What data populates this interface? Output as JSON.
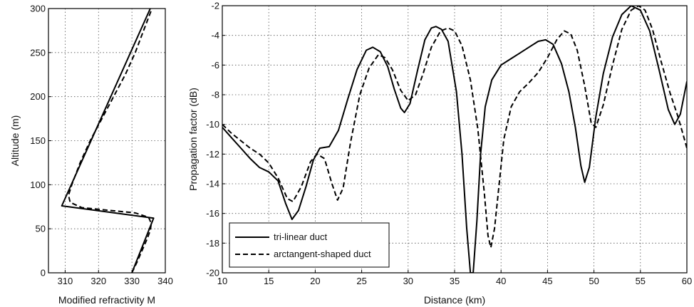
{
  "chart_data": [
    {
      "type": "line",
      "xlabel": "Modified refractivity M",
      "ylabel": "Altitude (m)",
      "xlim": [
        305,
        340
      ],
      "ylim": [
        0,
        300
      ],
      "xticks": [
        310,
        320,
        330,
        340
      ],
      "yticks": [
        0,
        50,
        100,
        150,
        200,
        250,
        300
      ],
      "grid": true,
      "series": [
        {
          "style": "solid",
          "points": [
            [
              330,
              0
            ],
            [
              336.5,
              62
            ],
            [
              309,
              76
            ],
            [
              335.5,
              300
            ]
          ]
        },
        {
          "style": "dashed",
          "points": [
            [
              330,
              0
            ],
            [
              331.5,
              12
            ],
            [
              333,
              25
            ],
            [
              334.5,
              38
            ],
            [
              335.5,
              48
            ],
            [
              335.8,
              56
            ],
            [
              335,
              63
            ],
            [
              331,
              68
            ],
            [
              323,
              71
            ],
            [
              315,
              74
            ],
            [
              311.5,
              80
            ],
            [
              311,
              88
            ],
            [
              312,
              100
            ],
            [
              314.5,
              125
            ],
            [
              317.5,
              150
            ],
            [
              321,
              175
            ],
            [
              324.5,
              200
            ],
            [
              328,
              225
            ],
            [
              331,
              250
            ],
            [
              333.5,
              275
            ],
            [
              336,
              300
            ]
          ]
        }
      ]
    },
    {
      "type": "line",
      "xlabel": "Distance (km)",
      "ylabel": "Propagation factor (dB)",
      "xlim": [
        10,
        60
      ],
      "ylim": [
        -20,
        -2
      ],
      "xticks": [
        10,
        15,
        20,
        25,
        30,
        35,
        40,
        45,
        50,
        55,
        60
      ],
      "yticks": [
        -20,
        -18,
        -16,
        -14,
        -12,
        -10,
        -8,
        -6,
        -4,
        -2
      ],
      "grid": true,
      "legend": {
        "position": "bottom-left",
        "entries": [
          {
            "label": "tri-linear duct",
            "style": "solid"
          },
          {
            "label": "arctangent-shaped duct",
            "style": "dashed"
          }
        ]
      },
      "series": [
        {
          "name": "tri-linear duct",
          "style": "solid",
          "points": [
            [
              10,
              -10.2
            ],
            [
              11,
              -10.9
            ],
            [
              12,
              -11.6
            ],
            [
              13,
              -12.3
            ],
            [
              14,
              -12.9
            ],
            [
              15,
              -13.2
            ],
            [
              16,
              -13.8
            ],
            [
              16.8,
              -15.3
            ],
            [
              17.5,
              -16.4
            ],
            [
              18.2,
              -15.8
            ],
            [
              19,
              -14.2
            ],
            [
              19.8,
              -12.4
            ],
            [
              20.5,
              -11.6
            ],
            [
              21.5,
              -11.5
            ],
            [
              22.5,
              -10.4
            ],
            [
              23.5,
              -8.3
            ],
            [
              24.5,
              -6.3
            ],
            [
              25.5,
              -5.0
            ],
            [
              26.2,
              -4.8
            ],
            [
              27,
              -5.1
            ],
            [
              27.8,
              -6.1
            ],
            [
              28.5,
              -7.6
            ],
            [
              29.2,
              -8.9
            ],
            [
              29.6,
              -9.2
            ],
            [
              30.2,
              -8.6
            ],
            [
              31,
              -6.4
            ],
            [
              31.8,
              -4.3
            ],
            [
              32.5,
              -3.5
            ],
            [
              33,
              -3.4
            ],
            [
              33.6,
              -3.6
            ],
            [
              34.3,
              -4.4
            ],
            [
              35.2,
              -7.8
            ],
            [
              35.8,
              -12.0
            ],
            [
              36.3,
              -17.0
            ],
            [
              36.7,
              -20.0
            ],
            [
              37.0,
              -20.0
            ],
            [
              37.4,
              -16.5
            ],
            [
              37.8,
              -12.0
            ],
            [
              38.3,
              -8.8
            ],
            [
              39,
              -7.0
            ],
            [
              40,
              -6.0
            ],
            [
              41,
              -5.6
            ],
            [
              42,
              -5.2
            ],
            [
              43,
              -4.8
            ],
            [
              44,
              -4.4
            ],
            [
              44.8,
              -4.3
            ],
            [
              45.6,
              -4.6
            ],
            [
              46.5,
              -5.9
            ],
            [
              47.3,
              -7.8
            ],
            [
              48,
              -10.2
            ],
            [
              48.6,
              -12.8
            ],
            [
              49,
              -13.9
            ],
            [
              49.5,
              -12.9
            ],
            [
              50.2,
              -9.5
            ],
            [
              51,
              -6.6
            ],
            [
              52,
              -4.1
            ],
            [
              53,
              -2.6
            ],
            [
              54,
              -2.0
            ],
            [
              55,
              -2.3
            ],
            [
              56,
              -3.7
            ],
            [
              57,
              -6.3
            ],
            [
              58,
              -9.0
            ],
            [
              58.7,
              -10.0
            ],
            [
              59.3,
              -9.3
            ],
            [
              60,
              -7.1
            ]
          ]
        },
        {
          "name": "arctangent-shaped duct",
          "style": "dashed",
          "points": [
            [
              10,
              -10.0
            ],
            [
              11,
              -10.6
            ],
            [
              12,
              -11.1
            ],
            [
              13,
              -11.6
            ],
            [
              14,
              -12.0
            ],
            [
              15,
              -12.6
            ],
            [
              16,
              -13.6
            ],
            [
              17,
              -15.0
            ],
            [
              17.6,
              -15.2
            ],
            [
              18.5,
              -14.2
            ],
            [
              19.5,
              -12.5
            ],
            [
              20.2,
              -12.0
            ],
            [
              21,
              -12.3
            ],
            [
              21.8,
              -14.0
            ],
            [
              22.4,
              -15.1
            ],
            [
              23,
              -14.3
            ],
            [
              23.8,
              -11.2
            ],
            [
              24.8,
              -8.0
            ],
            [
              25.8,
              -6.2
            ],
            [
              26.8,
              -5.3
            ],
            [
              27.5,
              -5.5
            ],
            [
              28.3,
              -6.3
            ],
            [
              29.2,
              -7.7
            ],
            [
              30,
              -8.4
            ],
            [
              30.8,
              -8.0
            ],
            [
              31.6,
              -6.6
            ],
            [
              32.5,
              -4.8
            ],
            [
              33.5,
              -3.7
            ],
            [
              34.3,
              -3.5
            ],
            [
              35,
              -3.7
            ],
            [
              35.8,
              -4.7
            ],
            [
              36.7,
              -7.0
            ],
            [
              37.5,
              -10.3
            ],
            [
              38.2,
              -14.6
            ],
            [
              38.6,
              -17.5
            ],
            [
              38.9,
              -18.3
            ],
            [
              39.3,
              -17.0
            ],
            [
              39.8,
              -14.0
            ],
            [
              40.3,
              -11.0
            ],
            [
              41.1,
              -8.8
            ],
            [
              42,
              -7.8
            ],
            [
              43,
              -7.2
            ],
            [
              44,
              -6.5
            ],
            [
              45,
              -5.5
            ],
            [
              46,
              -4.3
            ],
            [
              46.8,
              -3.7
            ],
            [
              47.5,
              -3.9
            ],
            [
              48.2,
              -5.0
            ],
            [
              49,
              -7.4
            ],
            [
              49.7,
              -9.9
            ],
            [
              50.2,
              -10.2
            ],
            [
              51,
              -8.7
            ],
            [
              52,
              -6.0
            ],
            [
              53,
              -3.6
            ],
            [
              54,
              -2.3
            ],
            [
              54.8,
              -2.0
            ],
            [
              55.5,
              -2.3
            ],
            [
              56.3,
              -3.6
            ],
            [
              57.2,
              -5.7
            ],
            [
              58.2,
              -7.9
            ],
            [
              59,
              -9.4
            ],
            [
              59.6,
              -10.7
            ],
            [
              60,
              -11.6
            ]
          ]
        }
      ]
    }
  ]
}
